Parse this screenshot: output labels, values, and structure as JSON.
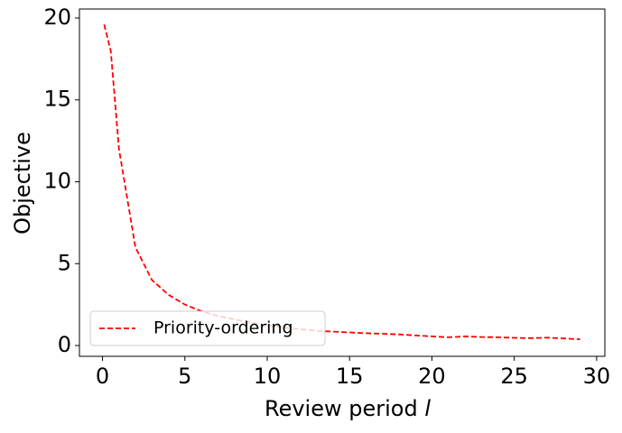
{
  "chart_data": {
    "type": "line",
    "x_label": "Review period l",
    "y_label": "Objective",
    "x": [
      0.1,
      0.5,
      1,
      2,
      3,
      4,
      5,
      6,
      7,
      8,
      9,
      10,
      11,
      12,
      13,
      14,
      15,
      16,
      17,
      18,
      19,
      20,
      21,
      22,
      23,
      24,
      25,
      26,
      27,
      28,
      29
    ],
    "series": [
      {
        "name": "Priority-ordering",
        "color": "#ff0000",
        "dash": true,
        "values": [
          19.6,
          18,
          12,
          6,
          4,
          3.1,
          2.5,
          2.1,
          1.8,
          1.6,
          1.4,
          1.25,
          1.1,
          1.0,
          0.9,
          0.85,
          0.8,
          0.75,
          0.72,
          0.68,
          0.62,
          0.56,
          0.5,
          0.56,
          0.52,
          0.5,
          0.47,
          0.45,
          0.48,
          0.43,
          0.38
        ]
      }
    ],
    "xlim": [
      -1.4,
      30.5
    ],
    "ylim": [
      -0.66,
      20.55
    ],
    "xticks": [
      0,
      5,
      10,
      15,
      20,
      25,
      30
    ],
    "yticks": [
      0,
      5,
      10,
      15,
      20
    ],
    "grid": false,
    "legend": "lower left"
  }
}
